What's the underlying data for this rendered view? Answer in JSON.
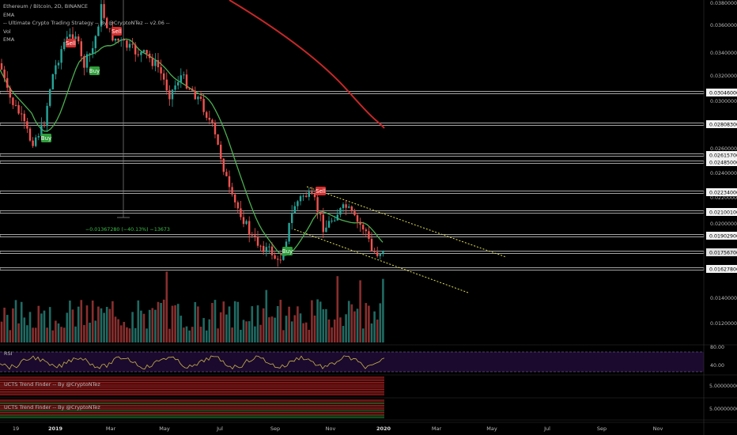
{
  "header": {
    "title": "Ethereum / Bitcoin, 2D, BINANCE",
    "indicators": [
      "EMA",
      "-- Ultimate Crypto Trading Strategy -- By @CryptoNTez -- v2.06 --",
      "Vol",
      "EMA"
    ]
  },
  "price_axis": {
    "ticks": [
      "0.03800000",
      "0.03600000",
      "0.03400000",
      "0.03200000",
      "0.03000000",
      "0.02600000",
      "0.02400000",
      "0.02200000",
      "0.02000000",
      "0.01400000",
      "0.01200000"
    ],
    "level_tags": [
      "0.03046000",
      "0.02808300",
      "0.02615700",
      "0.02485000",
      "0.02234000",
      "0.02100100",
      "0.01902900",
      "0.01756700",
      "0.01627800"
    ],
    "current_price_tag": "0.01756700"
  },
  "rsi_pane": {
    "label": "RSI",
    "ticks": [
      "80.00",
      "40.00"
    ]
  },
  "trend_panes": [
    {
      "label": "UCTS Trend Finder -- By @CryptoNTez",
      "tick": "5.00000000"
    },
    {
      "label": "UCTS Trend Finder -- By @CryptoNTez",
      "tick": "5.00000000"
    }
  ],
  "time_axis": [
    "19",
    "2019",
    "Mar",
    "May",
    "Jul",
    "Sep",
    "Nov",
    "2020",
    "Mar",
    "May",
    "Jul",
    "Sep",
    "Nov"
  ],
  "signals": [
    {
      "type": "Sell",
      "label": "Sell",
      "color": "#d32f2f"
    },
    {
      "type": "Buy",
      "label": "Buy",
      "color": "#2e9e3a"
    },
    {
      "type": "Buy",
      "label": "Buy",
      "color": "#2e9e3a"
    },
    {
      "type": "Sell",
      "label": "Sell",
      "color": "#d32f2f"
    },
    {
      "type": "Buy",
      "label": "Buy",
      "color": "#2e9e3a"
    },
    {
      "type": "Sell",
      "label": "Sell",
      "color": "#d32f2f"
    }
  ],
  "measure_tool": {
    "text": "−0.01367280 (−40.13%) −13673"
  },
  "colors": {
    "up": "#26a69a",
    "down": "#ef5350",
    "ema_fast": "#4caf50",
    "ema_slow": "#c62828",
    "trendline": "#e0e050",
    "rsi_line": "#c9b44a",
    "rsi_bg": "#1b0a2e"
  }
}
